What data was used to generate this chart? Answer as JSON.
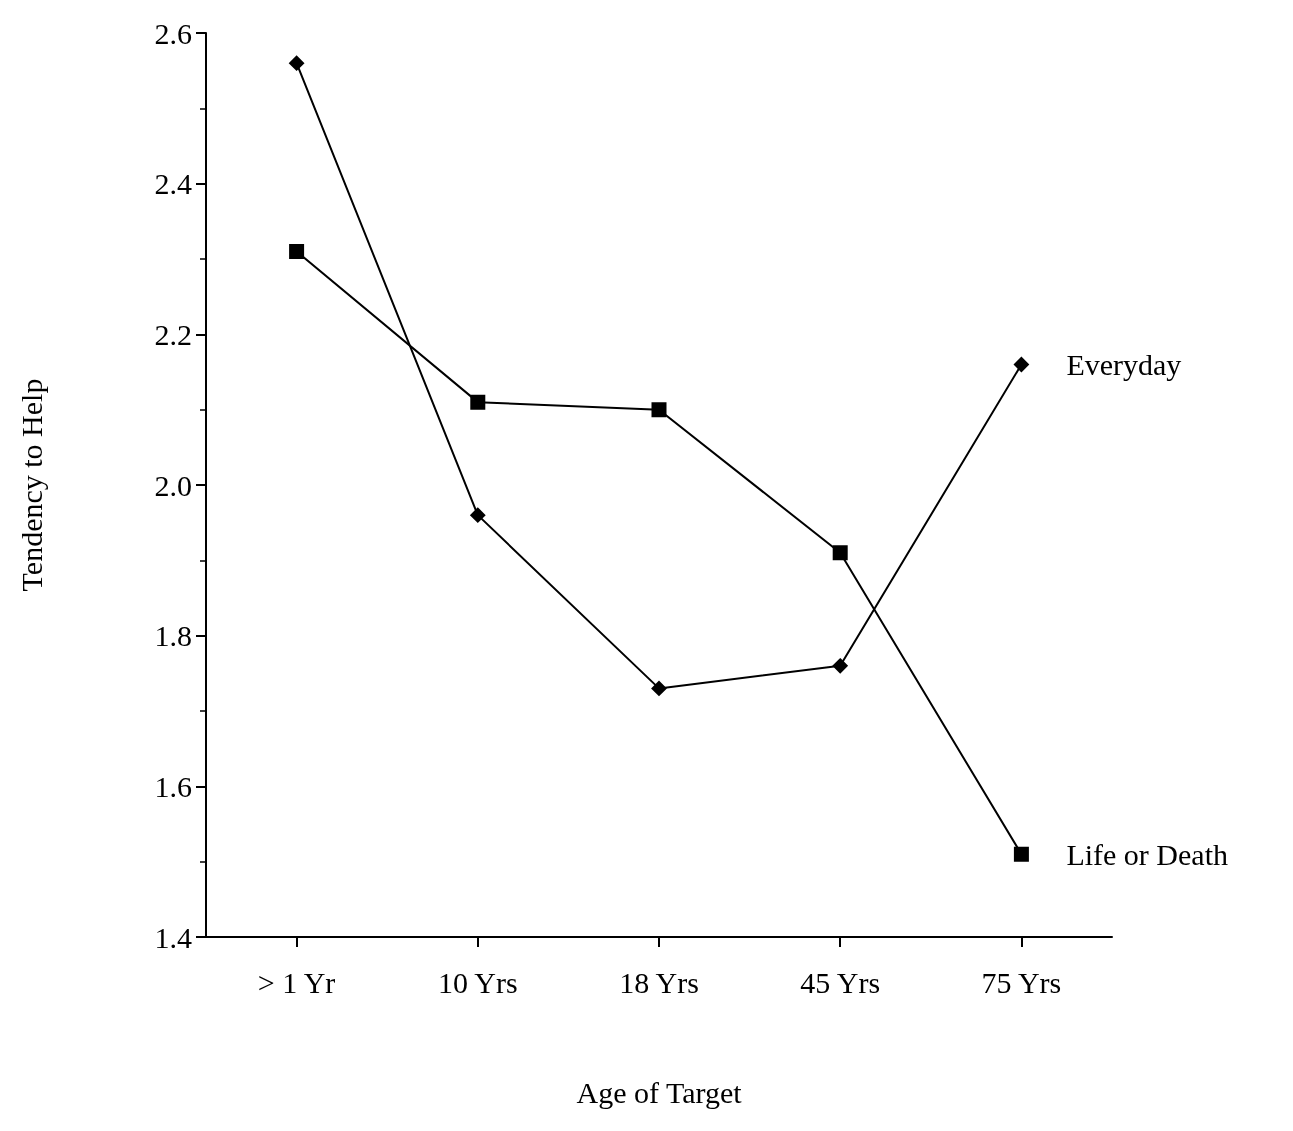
{
  "chart_data": {
    "type": "line",
    "xlabel": "Age of Target",
    "ylabel": "Tendency to Help",
    "categories": [
      "> 1 Yr",
      "10 Yrs",
      "18 Yrs",
      "45 Yrs",
      "75 Yrs"
    ],
    "series": [
      {
        "name": "Everyday",
        "color": "#000000",
        "marker": "diamond",
        "values": [
          2.56,
          1.96,
          1.73,
          1.76,
          2.16
        ]
      },
      {
        "name": "Life or Death",
        "color": "#000000",
        "marker": "square",
        "values": [
          2.31,
          2.11,
          2.1,
          1.91,
          1.51
        ]
      }
    ],
    "ylim": [
      1.4,
      2.6
    ],
    "yticks": [
      1.4,
      1.6,
      1.8,
      {
        "value": 2,
        "label": "2.0"
      },
      2.2,
      2.4,
      2.6
    ],
    "grid": false,
    "legend": false,
    "line_style": "solid"
  }
}
